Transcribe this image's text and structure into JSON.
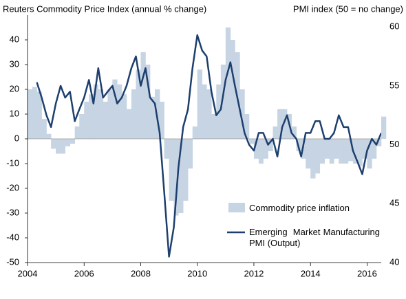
{
  "chart_data": {
    "type": "bar_line",
    "y_label": "Reuters Commodity Price Index (annual % change)",
    "y2_label": "PMI index (50 = no change)",
    "x": [
      2004,
      2004.17,
      2004.33,
      2004.5,
      2004.67,
      2004.83,
      2005,
      2005.17,
      2005.33,
      2005.5,
      2005.67,
      2005.83,
      2006,
      2006.17,
      2006.33,
      2006.5,
      2006.67,
      2006.83,
      2007,
      2007.17,
      2007.33,
      2007.5,
      2007.67,
      2007.83,
      2008,
      2008.17,
      2008.33,
      2008.5,
      2008.67,
      2008.83,
      2009,
      2009.17,
      2009.33,
      2009.5,
      2009.67,
      2009.83,
      2010,
      2010.17,
      2010.33,
      2010.5,
      2010.67,
      2010.83,
      2011,
      2011.17,
      2011.33,
      2011.5,
      2011.67,
      2011.83,
      2012,
      2012.17,
      2012.33,
      2012.5,
      2012.67,
      2012.83,
      2013,
      2013.17,
      2013.33,
      2013.5,
      2013.67,
      2013.83,
      2014,
      2014.17,
      2014.33,
      2014.5,
      2014.67,
      2014.83,
      2015,
      2015.17,
      2015.33,
      2015.5,
      2015.67,
      2015.83,
      2016,
      2016.17,
      2016.33,
      2016.5
    ],
    "series": [
      {
        "name": "Commodity price inflation",
        "color": "#c6d4e3",
        "kind": "bar",
        "values": [
          20,
          21,
          19,
          8,
          2,
          -4,
          -6,
          -6,
          -3,
          -2,
          5,
          10,
          15,
          18,
          22,
          20,
          15,
          20,
          24,
          22,
          18,
          12,
          20,
          28,
          35,
          30,
          17,
          20,
          15,
          -8,
          -25,
          -31,
          -30,
          -25,
          -12,
          5,
          28,
          22,
          20,
          10,
          22,
          30,
          45,
          40,
          35,
          20,
          10,
          -2,
          -8,
          -10,
          -8,
          -5,
          5,
          12,
          12,
          10,
          5,
          -5,
          -8,
          -12,
          -16,
          -14,
          -10,
          -8,
          -10,
          -8,
          -10,
          -10,
          -9,
          -10,
          -11,
          -8,
          -12,
          -8,
          -3,
          9
        ]
      },
      {
        "name": "Emerging  Market Manufacturing PMI (Output)",
        "color": "#1d3f6e",
        "kind": "line",
        "axis": "y2",
        "values": [
          null,
          null,
          55.3,
          54,
          52.5,
          51.5,
          53.5,
          55,
          54,
          54.5,
          52,
          53,
          54,
          55.5,
          53.5,
          56.5,
          54,
          54.5,
          55,
          53.5,
          54,
          55,
          56.5,
          57.5,
          55,
          56.5,
          54,
          53.5,
          51,
          46,
          40.5,
          43,
          48,
          51.5,
          53,
          56.5,
          59.3,
          58,
          57.5,
          54.5,
          52.5,
          53,
          55.5,
          57,
          55,
          53,
          51,
          50,
          49.5,
          51,
          51,
          50,
          50.5,
          49,
          51.5,
          52.5,
          51,
          50.5,
          49,
          51,
          51,
          52,
          52,
          50.5,
          50.5,
          51,
          52.5,
          51.5,
          51.5,
          49.5,
          48.5,
          47.5,
          49.5,
          50.5,
          50,
          51
        ]
      }
    ],
    "xlim": [
      2004,
      2016.5
    ],
    "xticks": [
      2004,
      2006,
      2008,
      2010,
      2012,
      2014,
      2016
    ],
    "ylim": [
      -50,
      50
    ],
    "yticks": [
      -50,
      -40,
      -30,
      -20,
      -10,
      0,
      10,
      20,
      30,
      40
    ],
    "y2lim": [
      40,
      61
    ],
    "y2ticks": [
      40,
      45,
      50,
      55,
      60
    ]
  }
}
